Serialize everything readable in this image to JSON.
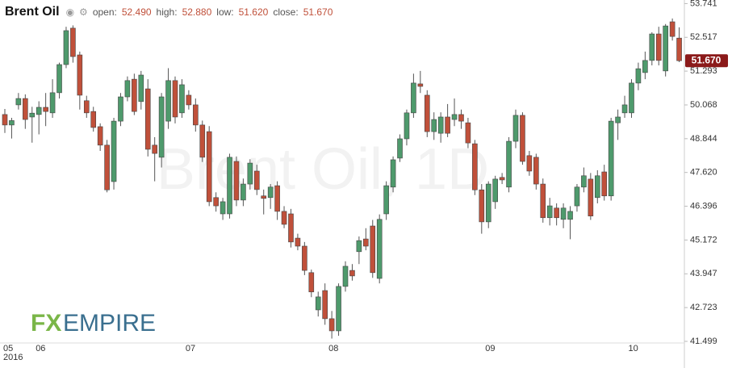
{
  "chart_data": {
    "type": "candlestick",
    "title": "Brent Oil",
    "watermark": "Brent Oil, 1D",
    "summary": [
      {
        "label": "open:",
        "value": "52.490"
      },
      {
        "label": "high:",
        "value": "52.880"
      },
      {
        "label": "low:",
        "value": "51.620"
      },
      {
        "label": "close:",
        "value": "51.670"
      }
    ],
    "logo": [
      "FX",
      "EMPIRE"
    ],
    "x_year_label": "2016",
    "up_color": "#4e9a6c",
    "down_color": "#c0503a",
    "categories": [
      "05",
      null,
      null,
      null,
      null,
      "06",
      null,
      null,
      null,
      null,
      null,
      null,
      null,
      null,
      null,
      null,
      null,
      null,
      null,
      null,
      null,
      null,
      null,
      null,
      null,
      null,
      null,
      "07",
      null,
      null,
      null,
      null,
      null,
      null,
      null,
      null,
      null,
      null,
      null,
      null,
      null,
      null,
      null,
      null,
      null,
      null,
      null,
      null,
      "08",
      null,
      null,
      null,
      null,
      null,
      null,
      null,
      null,
      null,
      null,
      null,
      null,
      null,
      null,
      null,
      null,
      null,
      null,
      null,
      null,
      null,
      null,
      "09",
      null,
      null,
      null,
      null,
      null,
      null,
      null,
      null,
      null,
      null,
      null,
      null,
      null,
      null,
      null,
      null,
      null,
      null,
      null,
      null,
      "10",
      null,
      null,
      null,
      null,
      null,
      null,
      null
    ],
    "open": [
      49.72,
      49.34,
      50.07,
      50.3,
      49.63,
      49.72,
      49.98,
      49.78,
      50.51,
      51.53,
      52.85,
      51.88,
      50.22,
      49.83,
      49.28,
      48.61,
      47.29,
      49.48,
      50.36,
      51.0,
      50.19,
      50.65,
      48.61,
      48.17,
      49.48,
      50.95,
      49.78,
      50.42,
      50.07,
      49.34,
      49.1,
      46.71,
      46.12,
      46.12,
      48.02,
      46.62,
      47.2,
      47.67,
      46.77,
      46.71,
      47.14,
      46.21,
      46.12,
      45.24,
      44.95,
      43.99,
      42.64,
      43.34,
      42.32,
      41.88,
      43.49,
      44.07,
      44.75,
      45.21,
      45.68,
      43.78,
      46.12,
      47.09,
      48.14,
      48.84,
      49.78,
      50.83,
      50.42,
      49.1,
      49.04,
      49.63,
      49.54,
      49.72,
      49.42,
      48.66,
      46.99,
      45.83,
      46.56,
      47.44,
      47.09,
      48.75,
      49.69,
      48.23,
      48.17,
      47.2,
      45.98,
      46.33,
      45.92,
      45.92,
      46.41,
      47.09,
      47.38,
      46.71,
      47.64,
      46.77,
      49.42,
      49.78,
      49.78,
      50.86,
      51.24,
      51.68,
      52.64,
      51.3,
      53.08,
      52.49
    ],
    "high": [
      49.92,
      49.6,
      50.5,
      50.45,
      50.0,
      50.2,
      50.5,
      51.0,
      51.6,
      52.9,
      52.95,
      52.0,
      50.4,
      50.0,
      49.4,
      48.8,
      49.6,
      50.5,
      51.1,
      51.2,
      51.3,
      51.0,
      48.9,
      50.5,
      51.4,
      51.1,
      51.0,
      50.6,
      50.3,
      49.5,
      49.3,
      46.9,
      46.7,
      48.3,
      48.2,
      47.4,
      48.1,
      47.9,
      47.0,
      47.2,
      47.3,
      46.4,
      46.3,
      45.4,
      45.1,
      44.1,
      43.3,
      43.6,
      42.6,
      43.6,
      44.4,
      44.3,
      45.3,
      45.6,
      45.9,
      46.1,
      47.3,
      48.2,
      49.0,
      49.9,
      51.2,
      51.3,
      50.6,
      49.8,
      49.8,
      50.1,
      50.3,
      49.9,
      49.6,
      48.8,
      47.2,
      47.3,
      47.5,
      47.6,
      48.9,
      49.9,
      49.8,
      48.4,
      48.3,
      47.4,
      46.7,
      46.5,
      46.5,
      46.4,
      47.2,
      47.8,
      47.6,
      47.7,
      47.9,
      49.6,
      49.9,
      50.4,
      51.0,
      51.6,
      52.0,
      52.7,
      52.9,
      53.0,
      53.2,
      52.88
    ],
    "low": [
      49.05,
      48.85,
      49.9,
      49.2,
      48.7,
      49.0,
      49.3,
      49.6,
      50.3,
      51.4,
      51.6,
      49.9,
      49.6,
      49.1,
      48.4,
      46.9,
      47.0,
      49.3,
      50.2,
      49.7,
      49.9,
      48.2,
      47.3,
      47.8,
      49.2,
      49.4,
      49.6,
      49.9,
      49.1,
      48.0,
      46.4,
      46.2,
      45.9,
      45.95,
      46.4,
      46.4,
      47.0,
      46.8,
      46.1,
      46.3,
      45.9,
      45.6,
      44.9,
      44.8,
      43.9,
      43.1,
      42.4,
      42.1,
      41.6,
      41.7,
      43.3,
      43.7,
      44.3,
      44.8,
      43.8,
      43.6,
      45.9,
      46.9,
      48.0,
      48.6,
      49.6,
      50.5,
      48.9,
      48.8,
      48.7,
      48.9,
      49.3,
      49.2,
      48.5,
      46.8,
      45.4,
      45.6,
      46.3,
      47.2,
      46.9,
      48.5,
      47.9,
      47.5,
      47.0,
      45.8,
      45.7,
      45.7,
      45.6,
      45.2,
      46.2,
      46.9,
      45.9,
      46.5,
      46.6,
      46.6,
      48.8,
      49.6,
      49.6,
      50.6,
      51.0,
      51.5,
      51.5,
      51.1,
      52.4,
      51.62
    ],
    "close": [
      49.34,
      49.5,
      50.3,
      49.54,
      49.77,
      49.98,
      49.83,
      50.51,
      51.53,
      52.76,
      51.82,
      50.42,
      49.78,
      49.25,
      48.61,
      46.99,
      49.48,
      50.36,
      50.95,
      49.83,
      51.15,
      48.46,
      48.31,
      50.36,
      50.95,
      49.63,
      50.8,
      50.07,
      49.34,
      48.17,
      46.56,
      46.41,
      46.56,
      48.17,
      46.62,
      47.2,
      47.96,
      47.0,
      46.68,
      47.09,
      46.21,
      45.74,
      45.1,
      44.95,
      44.07,
      43.29,
      43.11,
      42.32,
      41.88,
      43.49,
      44.22,
      43.87,
      45.15,
      44.95,
      43.99,
      45.92,
      47.14,
      48.08,
      48.84,
      49.78,
      50.86,
      50.74,
      49.1,
      49.54,
      49.63,
      49.04,
      49.72,
      49.48,
      48.69,
      46.99,
      45.83,
      47.2,
      47.38,
      47.35,
      48.75,
      49.69,
      48.02,
      47.67,
      47.2,
      45.98,
      46.41,
      45.98,
      46.33,
      46.21,
      47.09,
      47.5,
      46.04,
      47.5,
      46.77,
      49.48,
      49.63,
      50.07,
      50.86,
      51.38,
      51.68,
      52.64,
      51.68,
      52.93,
      52.55,
      51.67
    ],
    "ylim": [
      41.44,
      53.87
    ],
    "yticks": [
      41.499,
      42.723,
      43.947,
      45.172,
      46.396,
      {
        "value": 47.62,
        "label": "47.620"
      },
      48.844,
      50.068,
      51.293,
      52.517,
      53.741
    ],
    "grid": false
  }
}
